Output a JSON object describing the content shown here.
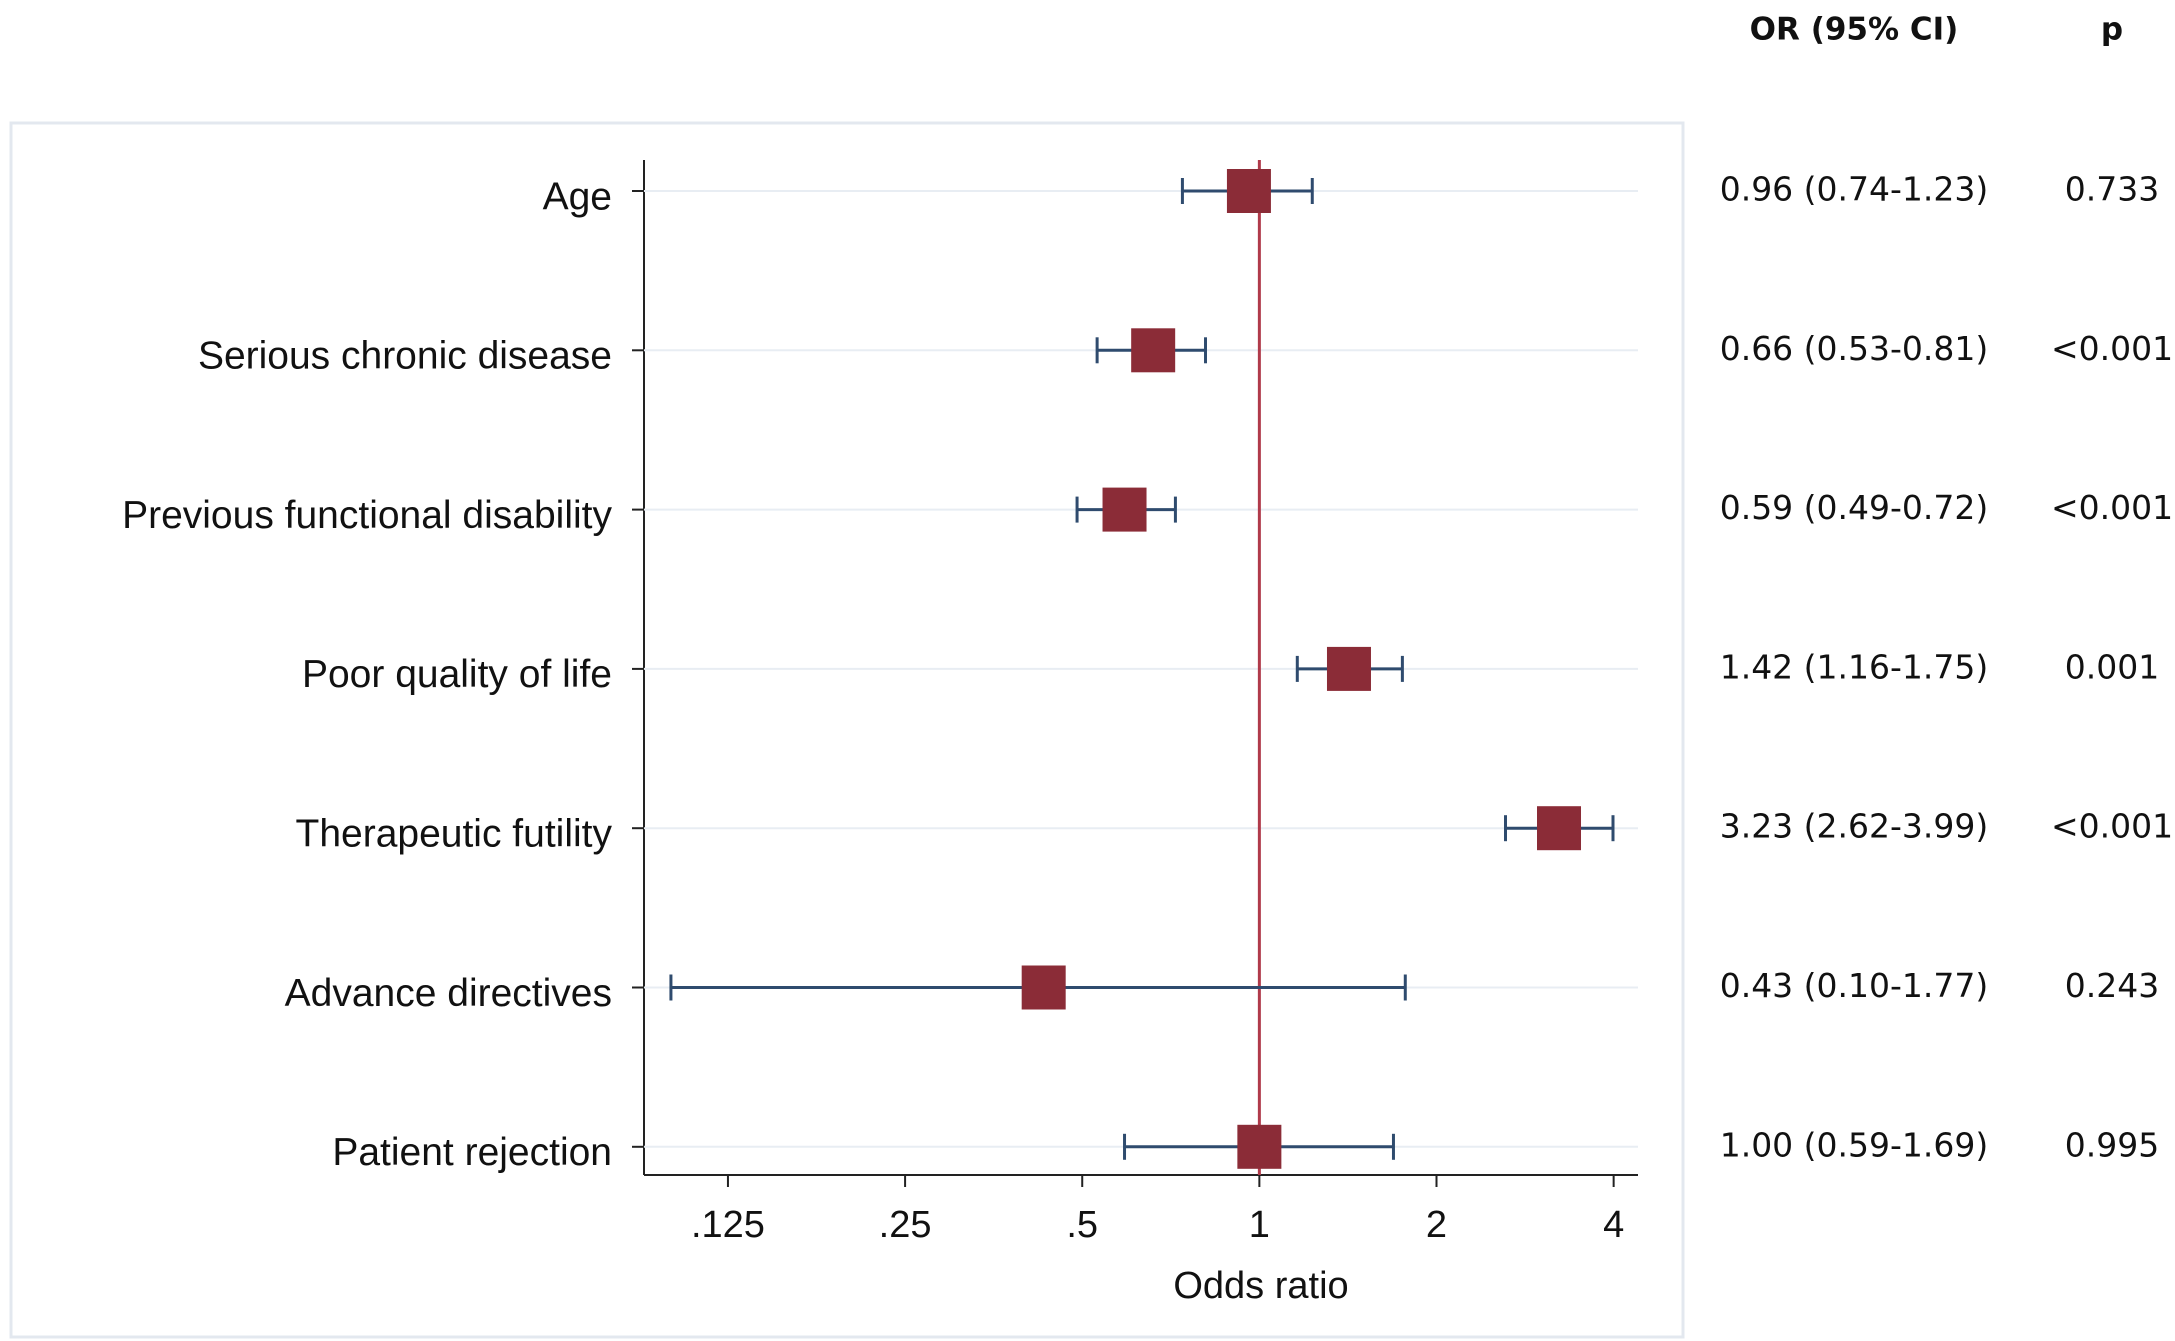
{
  "chart_data": {
    "type": "forest",
    "categories": [
      "Age",
      "Serious chronic disease",
      "Previous functional disability",
      "Poor quality of life",
      "Therapeutic futility",
      "Advance directives",
      "Patient rejection"
    ],
    "values": [
      0.96,
      0.66,
      0.59,
      1.42,
      3.23,
      0.43,
      1.0
    ],
    "lower": [
      0.74,
      0.53,
      0.49,
      1.16,
      2.62,
      0.1,
      0.59
    ],
    "upper": [
      1.23,
      0.81,
      0.72,
      1.75,
      3.99,
      1.77,
      1.69
    ],
    "value_labels": [
      "0.96 (0.74-1.23)",
      "0.66 (0.53-0.81)",
      "0.59 (0.49-0.72)",
      "1.42 (1.16-1.75)",
      "3.23 (2.62-3.99)",
      "0.43 (0.10-1.77)",
      "1.00 (0.59-1.69)"
    ],
    "p_labels": [
      "0.733",
      "<0.001",
      "<0.001",
      "0.001",
      "<0.001",
      "0.243",
      "0.995"
    ],
    "column_headers": [
      "OR (95% CI)",
      "p"
    ],
    "xlabel": "Odds ratio",
    "xscale": "log",
    "xlim": [
      0.09,
      4.4
    ],
    "xticks": [
      {
        "value": 0.125,
        "label": ".125"
      },
      {
        "value": 0.25,
        "label": ".25"
      },
      {
        "value": 0.5,
        "label": ".5"
      },
      1,
      2,
      4
    ],
    "reference_line": 1,
    "grid": true,
    "color": "#8b2c37",
    "ci_color": "#2f4b6e",
    "reference_color": "#b03a4a"
  }
}
